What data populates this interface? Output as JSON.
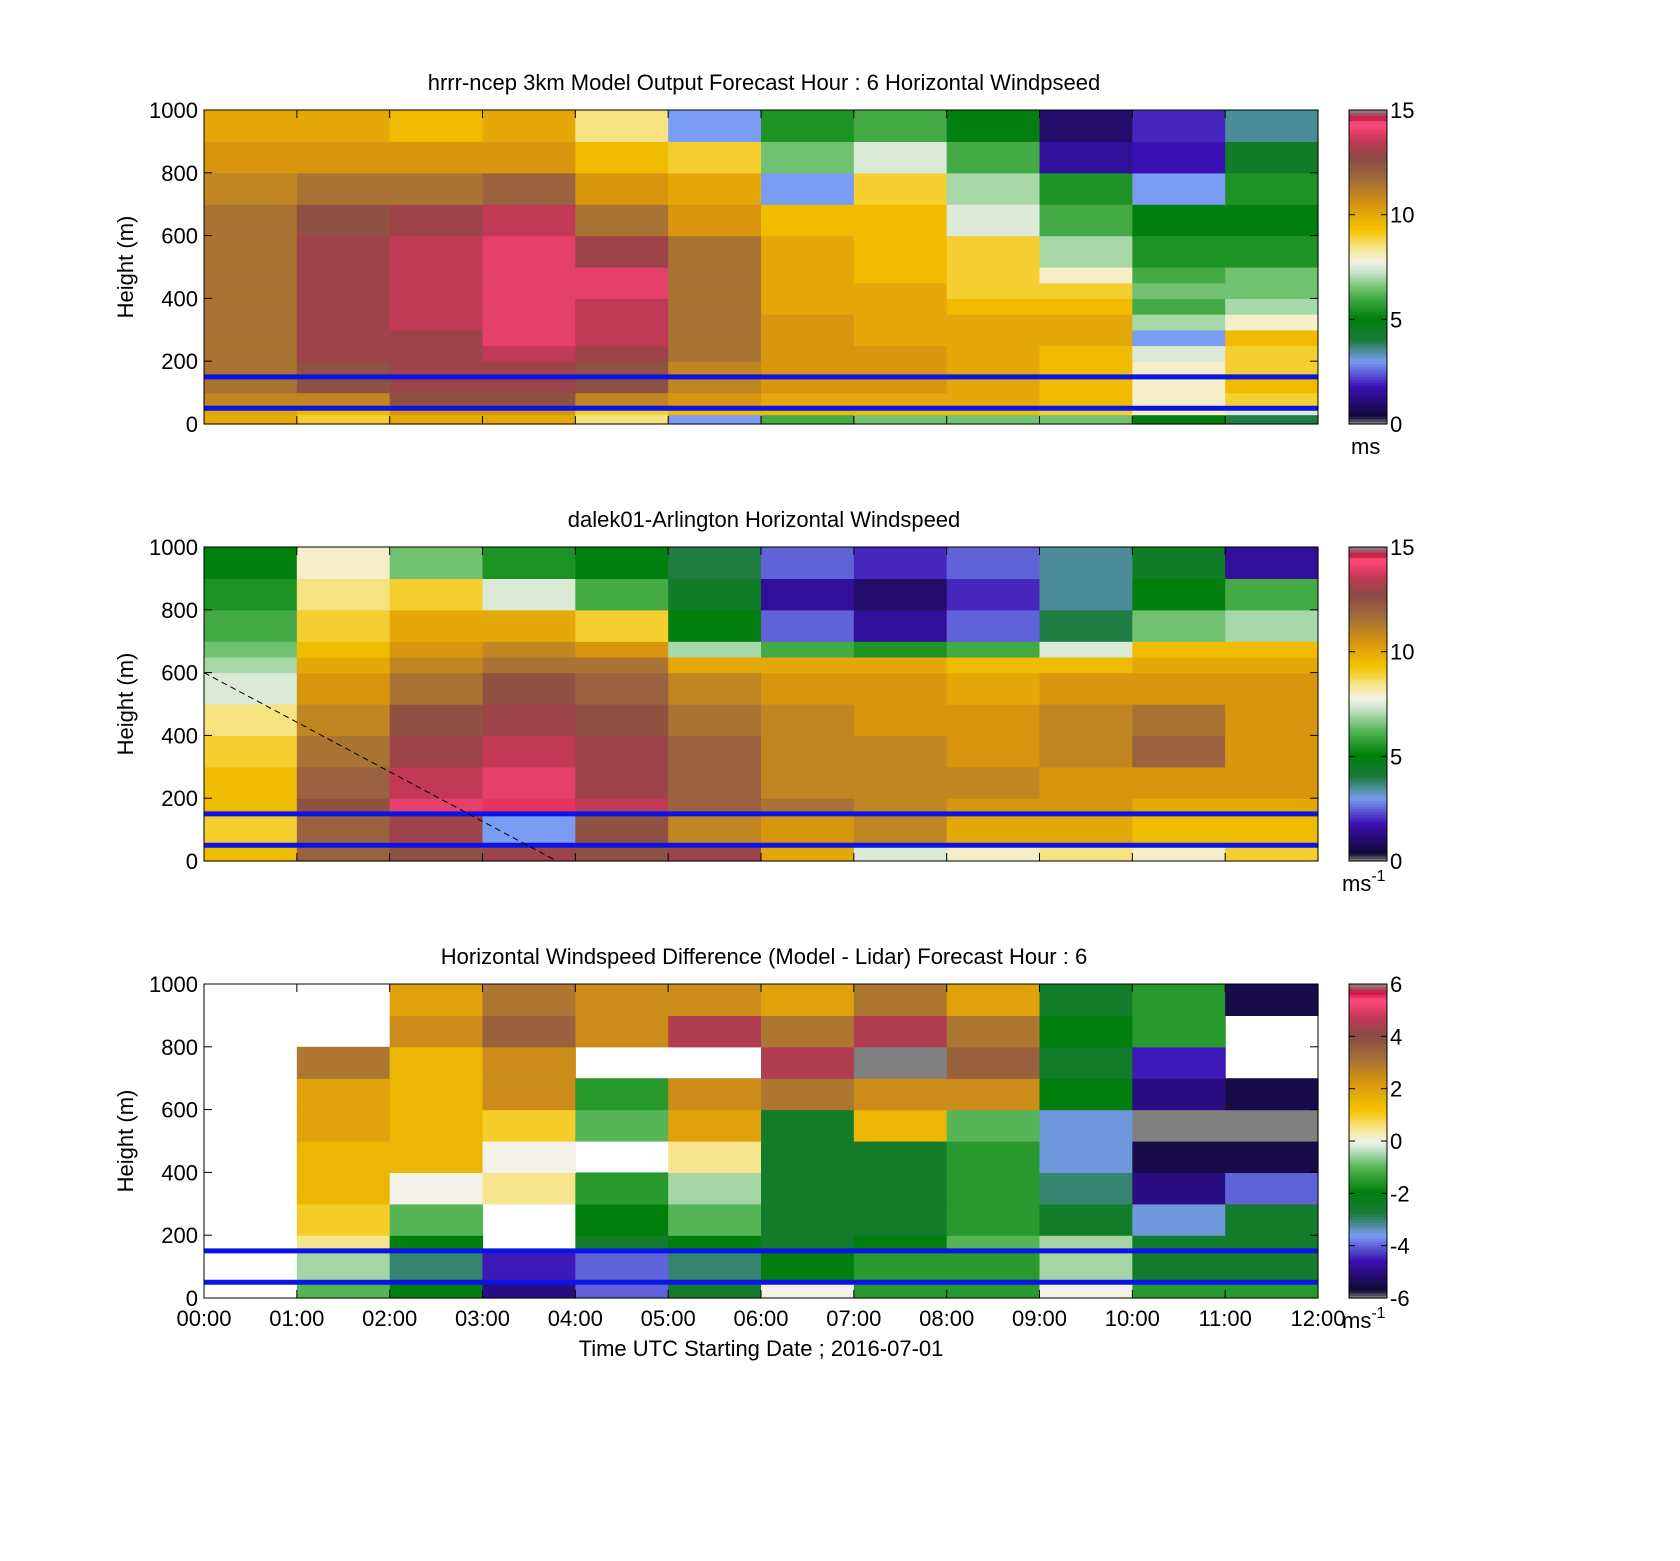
{
  "chart_data": [
    {
      "type": "heatmap",
      "title": "hrrr-ncep 3km Model Output   Forecast Hour : 6 Horizontal Windpseed",
      "ylabel": "Height (m)",
      "xlabel": "",
      "ylim": [
        0,
        1000
      ],
      "y_ticks": [
        "0",
        "200",
        "400",
        "600",
        "800",
        "1000"
      ],
      "x_ticks": [
        "",
        "",
        "",
        "",
        "",
        "",
        "",
        "",
        "",
        "",
        "",
        "",
        ""
      ],
      "colorbar": {
        "min": 0,
        "max": 15,
        "ticks": [
          "0",
          "5",
          "10",
          "15"
        ],
        "unit": "ms",
        "unit_sup": "",
        "palette": "speed"
      },
      "reference_lines": [
        {
          "height": 150,
          "color": "#0a14e6"
        },
        {
          "height": 50,
          "color": "#0a14e6"
        }
      ],
      "x_columns": 12,
      "y_edges": [
        0,
        30,
        50,
        100,
        150,
        200,
        250,
        300,
        350,
        400,
        450,
        500,
        600,
        700,
        800,
        900,
        1000
      ],
      "value_rows": [
        [
          10.0,
          9.0,
          10.0,
          10.0,
          8.5,
          3.0,
          6.0,
          6.5,
          6.5,
          6.5,
          5.0,
          4.0
        ],
        [
          10.0,
          9.5,
          10.5,
          10.5,
          9.0,
          9.5,
          9.5,
          9.5,
          9.5,
          9.0,
          8.0,
          7.5
        ],
        [
          11.0,
          11.0,
          12.5,
          12.5,
          11.0,
          10.5,
          10.0,
          10.0,
          10.0,
          9.5,
          8.0,
          9.0
        ],
        [
          11.5,
          12.5,
          13.0,
          13.0,
          12.5,
          11.0,
          10.5,
          10.5,
          10.0,
          9.5,
          8.0,
          9.5
        ],
        [
          11.5,
          12.5,
          13.0,
          13.0,
          12.5,
          11.0,
          10.5,
          10.5,
          10.0,
          9.5,
          8.0,
          9.0
        ],
        [
          11.5,
          13.0,
          13.0,
          13.5,
          13.0,
          11.5,
          10.5,
          10.5,
          10.0,
          9.5,
          7.5,
          9.0
        ],
        [
          11.5,
          13.0,
          13.0,
          14.0,
          13.5,
          11.5,
          10.5,
          10.0,
          10.0,
          10.0,
          3.0,
          9.5
        ],
        [
          11.5,
          13.0,
          13.5,
          14.0,
          13.5,
          11.5,
          10.5,
          10.0,
          10.0,
          10.0,
          7.0,
          8.0
        ],
        [
          11.5,
          13.0,
          13.5,
          14.0,
          13.5,
          11.5,
          10.0,
          10.0,
          9.5,
          9.5,
          6.0,
          7.0
        ],
        [
          11.5,
          13.0,
          13.5,
          14.0,
          14.0,
          11.5,
          10.0,
          10.0,
          9.0,
          9.0,
          6.5,
          6.5
        ],
        [
          11.5,
          13.0,
          13.5,
          14.0,
          14.0,
          11.5,
          10.0,
          9.5,
          9.0,
          8.0,
          6.0,
          6.5
        ],
        [
          11.5,
          13.0,
          13.5,
          14.0,
          13.0,
          11.5,
          10.0,
          9.5,
          9.0,
          7.0,
          5.5,
          5.5
        ],
        [
          11.5,
          12.5,
          13.0,
          13.5,
          11.5,
          10.5,
          9.5,
          9.5,
          7.5,
          6.0,
          5.0,
          5.0
        ],
        [
          11.0,
          11.5,
          11.5,
          12.0,
          10.5,
          10.0,
          3.0,
          9.0,
          7.0,
          5.5,
          3.0,
          5.5
        ],
        [
          10.5,
          10.5,
          10.5,
          10.5,
          9.5,
          9.0,
          6.5,
          7.5,
          6.0,
          1.5,
          1.8,
          4.5
        ],
        [
          10.0,
          10.0,
          9.5,
          10.0,
          8.5,
          3.0,
          5.5,
          6.0,
          5.0,
          1.0,
          2.0,
          3.5
        ]
      ]
    },
    {
      "type": "heatmap",
      "title": "dalek01-Arlington  Horizontal Windspeed",
      "ylabel": "Height (m)",
      "xlabel": "",
      "ylim": [
        0,
        1000
      ],
      "y_ticks": [
        "0",
        "200",
        "400",
        "600",
        "800",
        "1000"
      ],
      "x_ticks": [
        "",
        "",
        "",
        "",
        "",
        "",
        "",
        "",
        "",
        "",
        "",
        "",
        ""
      ],
      "colorbar": {
        "min": 0,
        "max": 15,
        "ticks": [
          "0",
          "5",
          "10",
          "15"
        ],
        "unit": "ms",
        "unit_sup": "-1",
        "palette": "speed"
      },
      "reference_lines": [
        {
          "height": 150,
          "color": "#0a14e6"
        },
        {
          "height": 50,
          "color": "#0a14e6"
        }
      ],
      "dashed_line": {
        "from": [
          "00:00",
          600
        ],
        "to": [
          "03:48",
          0
        ]
      },
      "x_columns": 12,
      "y_edges": [
        0,
        50,
        150,
        200,
        300,
        400,
        500,
        600,
        650,
        700,
        800,
        900,
        1000
      ],
      "value_rows": [
        [
          9.5,
          12.0,
          12.5,
          13.0,
          12.5,
          13.0,
          10.0,
          7.5,
          8.0,
          8.5,
          8.0,
          9.0
        ],
        [
          9.0,
          12.0,
          13.0,
          3.0,
          12.5,
          11.0,
          10.5,
          11.0,
          10.0,
          10.0,
          9.5,
          9.5
        ],
        [
          9.5,
          12.5,
          14.0,
          14.5,
          13.5,
          12.0,
          11.5,
          11.0,
          10.5,
          10.5,
          10.0,
          10.0
        ],
        [
          9.5,
          12.0,
          13.5,
          14.0,
          13.0,
          12.0,
          11.0,
          11.0,
          11.0,
          10.5,
          10.5,
          10.5
        ],
        [
          9.0,
          11.5,
          13.0,
          13.5,
          13.0,
          12.0,
          11.0,
          11.0,
          10.5,
          11.0,
          12.0,
          10.5
        ],
        [
          8.5,
          11.0,
          12.5,
          13.0,
          12.5,
          11.5,
          11.0,
          10.5,
          10.5,
          11.0,
          11.5,
          10.5
        ],
        [
          7.5,
          10.5,
          11.5,
          12.5,
          12.0,
          11.0,
          10.5,
          10.5,
          10.0,
          10.5,
          10.5,
          10.5
        ],
        [
          7.0,
          10.0,
          11.0,
          11.5,
          11.5,
          10.0,
          10.0,
          10.0,
          9.5,
          9.5,
          10.0,
          10.0
        ],
        [
          6.5,
          9.5,
          10.5,
          11.0,
          10.5,
          7.0,
          6.0,
          5.5,
          6.0,
          7.5,
          9.5,
          9.5
        ],
        [
          6.0,
          9.0,
          10.0,
          10.0,
          9.0,
          5.0,
          2.5,
          1.5,
          2.5,
          4.0,
          6.5,
          7.0
        ],
        [
          5.5,
          8.5,
          9.0,
          7.5,
          6.0,
          4.5,
          1.5,
          1.0,
          2.0,
          3.5,
          5.0,
          6.0
        ],
        [
          5.0,
          8.0,
          6.5,
          5.5,
          5.0,
          4.0,
          2.5,
          2.0,
          2.5,
          3.5,
          4.5,
          1.5
        ]
      ]
    },
    {
      "type": "heatmap",
      "title": "Horizontal Windspeed Difference (Model - Lidar) Forecast Hour : 6",
      "ylabel": "Height (m)",
      "xlabel": "Time UTC  Starting Date ; 2016-07-01",
      "ylim": [
        0,
        1000
      ],
      "y_ticks": [
        "0",
        "200",
        "400",
        "600",
        "800",
        "1000"
      ],
      "x_ticks": [
        "00:00",
        "01:00",
        "02:00",
        "03:00",
        "04:00",
        "05:00",
        "06:00",
        "07:00",
        "08:00",
        "09:00",
        "10:00",
        "11:00",
        "12:00"
      ],
      "colorbar": {
        "min": -6,
        "max": 6,
        "ticks": [
          "-6",
          "-4",
          "-2",
          "0",
          "2",
          "4",
          "6"
        ],
        "unit": "ms",
        "unit_sup": "-1",
        "palette": "diff"
      },
      "reference_lines": [
        {
          "height": 150,
          "color": "#0a14e6"
        },
        {
          "height": 50,
          "color": "#0a14e6"
        }
      ],
      "x_columns": 12,
      "y_edges": [
        0,
        50,
        150,
        200,
        300,
        400,
        500,
        600,
        700,
        800,
        900,
        1000
      ],
      "value_rows": [
        [
          null,
          -1.0,
          -2.0,
          -5.0,
          -4.0,
          -2.5,
          0.0,
          -1.5,
          -1.5,
          0.0,
          -1.5,
          -1.5
        ],
        [
          null,
          -0.5,
          -3.0,
          -4.5,
          -4.0,
          -3.0,
          -2.0,
          -1.5,
          -1.5,
          -0.5,
          -2.5,
          -2.5
        ],
        [
          null,
          0.5,
          -2.0,
          null,
          -2.5,
          -2.0,
          -2.5,
          -2.0,
          -1.0,
          -0.5,
          -2.5,
          -2.5
        ],
        [
          null,
          1.0,
          -1.0,
          null,
          -2.0,
          -1.0,
          -2.5,
          -2.5,
          -1.5,
          -2.5,
          -3.5,
          -2.5
        ],
        [
          null,
          1.5,
          0.0,
          0.5,
          -1.5,
          -0.5,
          -2.5,
          -2.5,
          -1.5,
          -3.0,
          -5.0,
          -4.0
        ],
        [
          null,
          1.5,
          1.5,
          0.0,
          null,
          0.5,
          -2.5,
          -2.5,
          -1.5,
          -3.5,
          -5.5,
          -5.5
        ],
        [
          null,
          2.0,
          1.5,
          1.0,
          -1.0,
          2.0,
          -2.5,
          1.5,
          -1.0,
          -3.5,
          "gap",
          "gap"
        ],
        [
          null,
          2.0,
          1.5,
          2.5,
          -1.5,
          2.5,
          3.0,
          2.5,
          2.5,
          -2.0,
          -5.0,
          -5.5
        ],
        [
          null,
          3.0,
          1.5,
          2.5,
          null,
          null,
          4.5,
          "gap",
          3.5,
          -2.5,
          -4.5,
          null
        ],
        [
          null,
          null,
          2.5,
          3.5,
          2.5,
          4.5,
          3.0,
          4.5,
          3.0,
          -2.0,
          -1.5,
          null
        ],
        [
          null,
          null,
          2.0,
          3.0,
          2.5,
          2.5,
          2.0,
          3.0,
          2.0,
          -2.5,
          -1.5,
          -5.5
        ]
      ]
    }
  ]
}
